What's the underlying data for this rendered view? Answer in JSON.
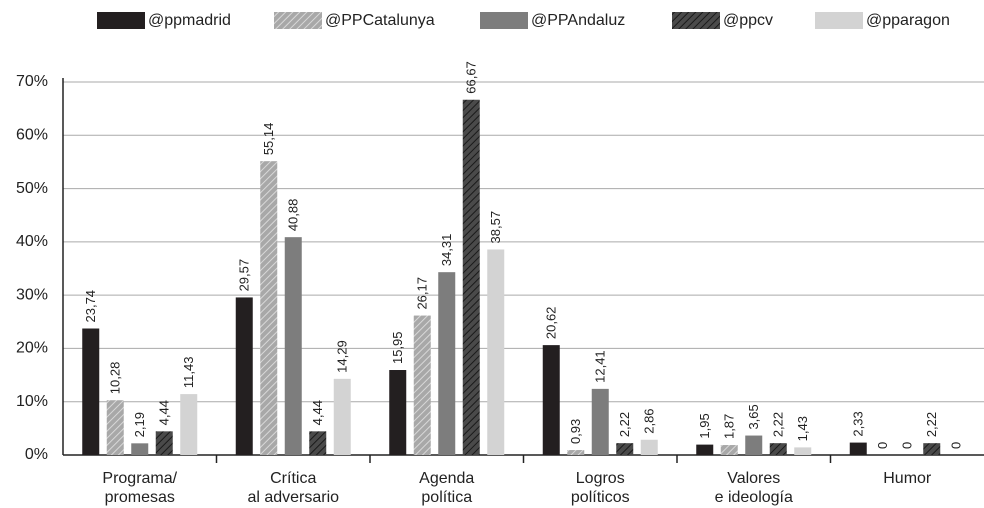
{
  "chart_data": {
    "type": "bar",
    "categories": [
      [
        "Programa/",
        "promesas"
      ],
      [
        "Crítica",
        "al adversario"
      ],
      [
        "Agenda",
        "política"
      ],
      [
        "Logros",
        "políticos"
      ],
      [
        "Valores",
        "e ideología"
      ],
      [
        "Humor"
      ]
    ],
    "series": [
      {
        "name": "@ppmadrid",
        "color": "#231f20",
        "hatch": false,
        "values": [
          23.74,
          29.57,
          15.95,
          20.62,
          1.95,
          2.33
        ],
        "value_labels": [
          "23,74",
          "29,57",
          "15,95",
          "20,62",
          "1,95",
          "2,33"
        ]
      },
      {
        "name": "@PPCatalunya",
        "color": "#a8a8a8",
        "hatch": true,
        "values": [
          10.28,
          55.14,
          26.17,
          0.93,
          1.87,
          0
        ],
        "value_labels": [
          "10,28",
          "55,14",
          "26,17",
          "0,93",
          "1,87",
          "0"
        ]
      },
      {
        "name": "@PPAndaluz",
        "color": "#7d7d7d",
        "hatch": false,
        "values": [
          2.19,
          40.88,
          34.31,
          12.41,
          3.65,
          0
        ],
        "value_labels": [
          "2,19",
          "40,88",
          "34,31",
          "12,41",
          "3,65",
          "0"
        ]
      },
      {
        "name": "@ppcv",
        "color": "#4a4a4a",
        "hatch": true,
        "values": [
          4.44,
          4.44,
          66.67,
          2.22,
          2.22,
          2.22
        ],
        "value_labels": [
          "4,44",
          "4,44",
          "66,67",
          "2,22",
          "2,22",
          "2,22"
        ]
      },
      {
        "name": "@pparagon",
        "color": "#d3d3d3",
        "hatch": false,
        "values": [
          11.43,
          14.29,
          38.57,
          2.86,
          1.43,
          0
        ],
        "value_labels": [
          "11,43",
          "14,29",
          "38,57",
          "2,86",
          "1,43",
          "0"
        ]
      }
    ],
    "ylim": [
      0,
      70
    ],
    "yticks": [
      {
        "value": 0,
        "label": "0%"
      },
      {
        "value": 10,
        "label": "10%"
      },
      {
        "value": 20,
        "label": "20%"
      },
      {
        "value": 30,
        "label": "30%"
      },
      {
        "value": 40,
        "label": "40%"
      },
      {
        "value": 50,
        "label": "50%"
      },
      {
        "value": 60,
        "label": "60%"
      },
      {
        "value": 70,
        "label": "70%"
      }
    ],
    "grid": true,
    "legend": "top"
  }
}
